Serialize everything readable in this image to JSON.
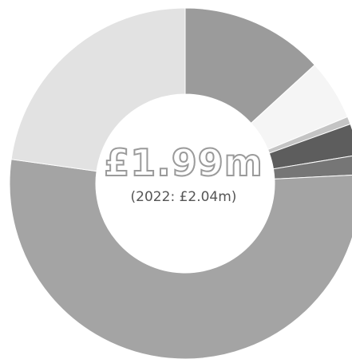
{
  "chart_data": {
    "type": "pie",
    "hole": true,
    "center_value": "£1.99m",
    "center_subtitle": "(2022: £2.04m)",
    "start_angle_deg": 0,
    "slices": [
      {
        "value": 13.2,
        "color": "#9b9b9b"
      },
      {
        "value": 5.6,
        "color": "#f5f5f5"
      },
      {
        "value": 0.7,
        "color": "#c4c4c4"
      },
      {
        "value": 2.9,
        "color": "#5d5d5d"
      },
      {
        "value": 1.8,
        "color": "#767676"
      },
      {
        "value": 53.0,
        "color": "#a4a4a4"
      },
      {
        "value": 22.8,
        "color": "#e2e2e2"
      }
    ]
  }
}
